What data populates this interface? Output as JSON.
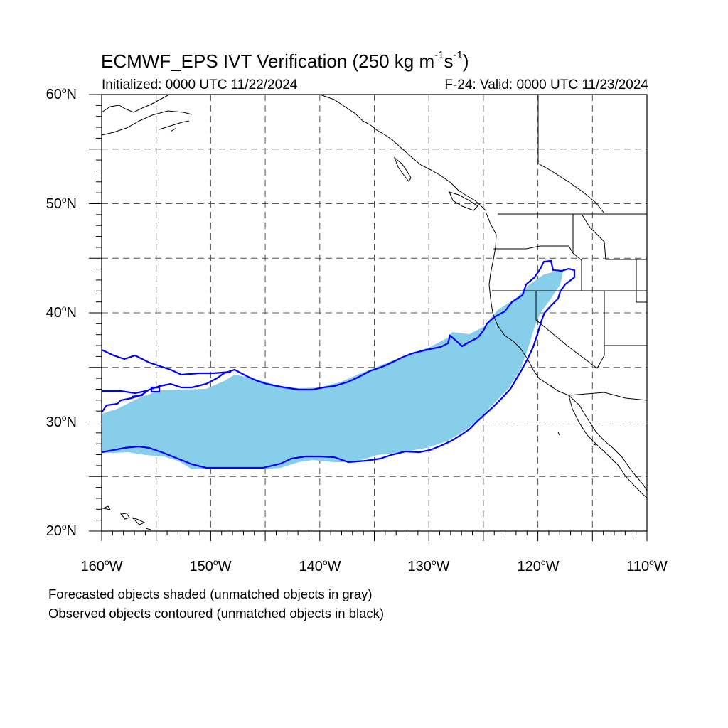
{
  "title": {
    "main": "ECMWF_EPS IVT Verification (250 kg m",
    "sup1": "-1",
    "mid": "s",
    "sup2": "-1",
    "end": ")"
  },
  "subtitle_left": "Initialized: 0000 UTC 11/22/2024",
  "subtitle_right": "F-24: Valid: 0000 UTC 11/23/2024",
  "captions": [
    "Forecasted objects shaded (unmatched objects in gray)",
    "Observed objects contoured (unmatched objects in black)"
  ],
  "map": {
    "lon_range": [
      -160,
      -110
    ],
    "lat_range": [
      20,
      60
    ],
    "lat_ticks": [
      {
        "num": "60",
        "suf": "N"
      },
      {
        "num": "50",
        "suf": "N"
      },
      {
        "num": "40",
        "suf": "N"
      },
      {
        "num": "30",
        "suf": "N"
      },
      {
        "num": "20",
        "suf": "N"
      }
    ],
    "lon_ticks": [
      {
        "num": "160",
        "suf": "W"
      },
      {
        "num": "150",
        "suf": "W"
      },
      {
        "num": "140",
        "suf": "W"
      },
      {
        "num": "130",
        "suf": "W"
      },
      {
        "num": "120",
        "suf": "W"
      },
      {
        "num": "110",
        "suf": "W"
      }
    ],
    "gridlines": "dashed every 5 degrees",
    "colors": {
      "forecast_fill": "#87ceeb",
      "observed_contour": "#0000ff",
      "coastline": "#000000",
      "grid": "#555555"
    }
  }
}
